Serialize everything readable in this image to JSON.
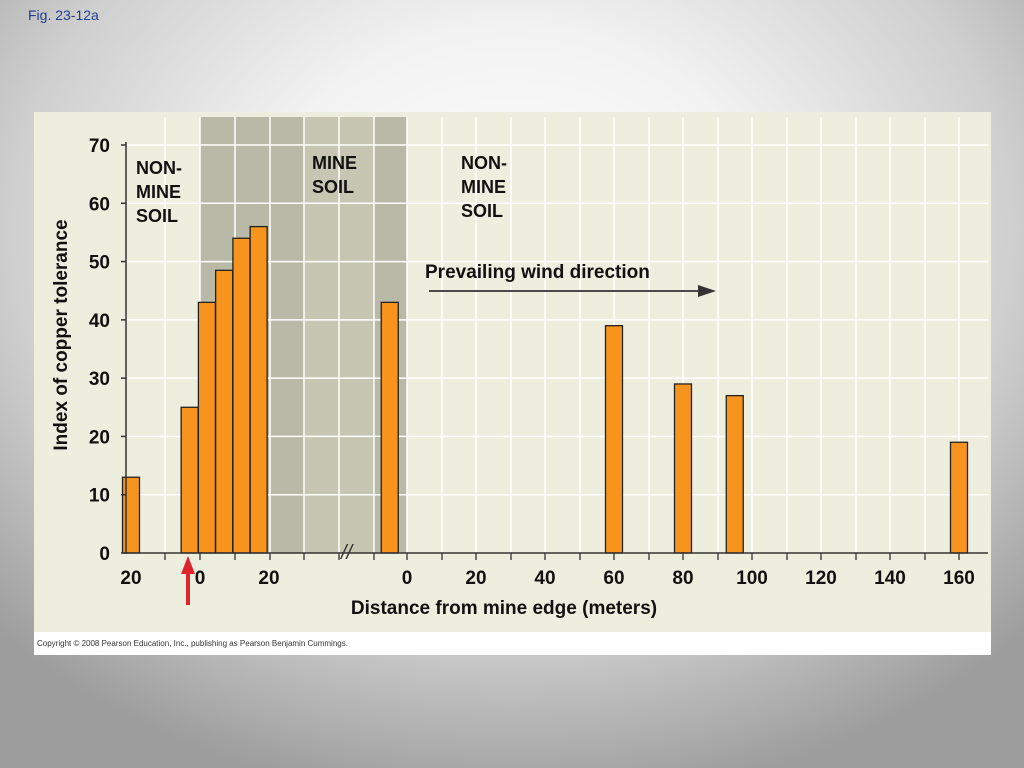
{
  "slide": {
    "caption": "Fig. 23-12a",
    "copyright": "Copyright © 2008 Pearson Education, Inc., publishing as Pearson Benjamin Cummings."
  },
  "colors": {
    "bar_fill": "#f7941d",
    "bar_stroke": "#222222",
    "plot_bg": "#eeeedf",
    "mine_dark": "#b9b9a8",
    "mine_light": "#c6c6b3",
    "arrow_red": "#e0242e"
  },
  "chart_data": {
    "type": "bar",
    "xlabel": "Distance from mine edge (meters)",
    "ylabel": "Index of copper tolerance",
    "ylim": [
      0,
      70
    ],
    "yticks": [
      0,
      10,
      20,
      30,
      40,
      50,
      60,
      70
    ],
    "grid": true,
    "xaxis_segments": [
      {
        "ticks": [
          "20",
          "0",
          "20"
        ],
        "bars": [
          {
            "x": -20,
            "value": 13
          },
          {
            "x": -3,
            "value": 25
          },
          {
            "x": 2,
            "value": 43
          },
          {
            "x": 7,
            "value": 48.5
          },
          {
            "x": 12,
            "value": 54
          },
          {
            "x": 17,
            "value": 56
          }
        ]
      },
      {
        "ticks": [
          "0",
          "20",
          "40",
          "60",
          "80",
          "100",
          "120",
          "140",
          "160"
        ],
        "bars": [
          {
            "x": -5,
            "value": 43
          },
          {
            "x": 60,
            "value": 39
          },
          {
            "x": 80,
            "value": 29
          },
          {
            "x": 95,
            "value": 27
          },
          {
            "x": 160,
            "value": 19
          }
        ]
      }
    ],
    "region_labels": [
      {
        "id": "nonmine-left",
        "lines": [
          "NON-",
          "MINE",
          "SOIL"
        ]
      },
      {
        "id": "mine",
        "lines": [
          "MINE",
          "SOIL"
        ]
      },
      {
        "id": "nonmine-right",
        "lines": [
          "NON-",
          "MINE",
          "SOIL"
        ]
      }
    ],
    "annotations": {
      "wind": "Prevailing wind direction",
      "axis_break": "//"
    }
  }
}
